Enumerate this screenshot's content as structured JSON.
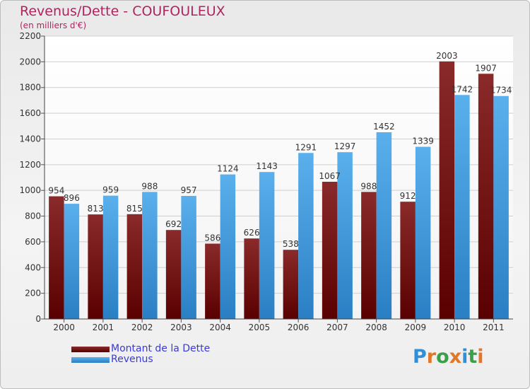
{
  "chart_data": {
    "type": "bar",
    "title": "Revenus/Dette - COUFOULEUX",
    "subtitle": "(en milliers d'€)",
    "categories": [
      "2000",
      "2001",
      "2002",
      "2003",
      "2004",
      "2005",
      "2006",
      "2007",
      "2008",
      "2009",
      "2010",
      "2011"
    ],
    "series": [
      {
        "name": "Montant de la Dette",
        "color": "#7b1010",
        "values": [
          954,
          813,
          815,
          692,
          586,
          626,
          538,
          1067,
          988,
          912,
          2003,
          1907
        ]
      },
      {
        "name": "Revenus",
        "color": "#3d9be0",
        "values": [
          896,
          959,
          988,
          957,
          1124,
          1143,
          1291,
          1297,
          1452,
          1339,
          1742,
          1734
        ]
      }
    ],
    "yticks": [
      0,
      200,
      400,
      600,
      800,
      1000,
      1200,
      1400,
      1600,
      1800,
      2000,
      2200
    ],
    "ylim": [
      0,
      2200
    ],
    "grid": true,
    "legend_position": "bottom-left"
  },
  "logo": {
    "text": "Proxiti",
    "letters": [
      {
        "ch": "P",
        "color": "#2f8fd8"
      },
      {
        "ch": "r",
        "color": "#e0772a"
      },
      {
        "ch": "o",
        "color": "#3aa04a"
      },
      {
        "ch": "x",
        "color": "#e0772a"
      },
      {
        "ch": "i",
        "color": "#2f8fd8"
      },
      {
        "ch": "t",
        "color": "#3aa04a"
      },
      {
        "ch": "i",
        "color": "#e0772a"
      }
    ]
  }
}
